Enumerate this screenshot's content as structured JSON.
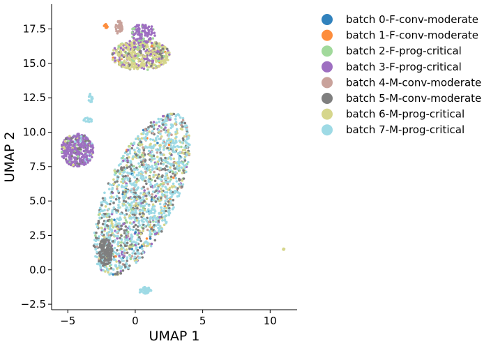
{
  "chart_data": {
    "type": "scatter",
    "title": "",
    "xlabel": "UMAP 1",
    "ylabel": "UMAP 2",
    "xlim": [
      -6.2,
      12.0
    ],
    "ylim": [
      -2.9,
      19.3
    ],
    "xticks": [
      -5,
      0,
      5,
      10
    ],
    "xtick_labels": [
      "−5",
      "0",
      "5",
      "10"
    ],
    "yticks": [
      -2.5,
      0.0,
      2.5,
      5.0,
      7.5,
      10.0,
      12.5,
      15.0,
      17.5
    ],
    "ytick_labels": [
      "−2.5",
      "0.0",
      "2.5",
      "5.0",
      "7.5",
      "10.0",
      "12.5",
      "15.0",
      "17.5"
    ],
    "grid": false,
    "legend_position": "outside-right-top",
    "series": [
      {
        "name": "batch 0-F-conv-moderate",
        "color": "#3182bd"
      },
      {
        "name": "batch 1-F-conv-moderate",
        "color": "#fd8d3c"
      },
      {
        "name": "batch 2-F-prog-critical",
        "color": "#a1d99b"
      },
      {
        "name": "batch 3-F-prog-critical",
        "color": "#9e6fc1"
      },
      {
        "name": "batch 4-M-conv-moderate",
        "color": "#c9a29b"
      },
      {
        "name": "batch 5-M-conv-moderate",
        "color": "#7f7f7f"
      },
      {
        "name": "batch 6-M-prog-critical",
        "color": "#d6d68c"
      },
      {
        "name": "batch 7-M-prog-critical",
        "color": "#9edae5"
      }
    ],
    "clusters": [
      {
        "cx": 0.5,
        "cy": 5.5,
        "rx": 2.6,
        "ry": 6.4,
        "rot": -25,
        "n": 1700,
        "mix": [
          0.01,
          0.01,
          0.04,
          0.04,
          0.04,
          0.2,
          0.16,
          0.5
        ]
      },
      {
        "cx": 0.4,
        "cy": 15.6,
        "rx": 2.2,
        "ry": 1.1,
        "rot": 0,
        "n": 520,
        "mix": [
          0.0,
          0.01,
          0.07,
          0.18,
          0.01,
          0.08,
          0.65,
          0.0
        ]
      },
      {
        "cx": 0.6,
        "cy": 17.2,
        "rx": 0.9,
        "ry": 0.7,
        "rot": 0,
        "n": 110,
        "mix": [
          0.0,
          0.0,
          0.2,
          0.8,
          0.0,
          0.0,
          0.0,
          0.0
        ]
      },
      {
        "cx": -1.2,
        "cy": 17.6,
        "rx": 0.25,
        "ry": 0.5,
        "rot": 0,
        "n": 40,
        "mix": [
          0.0,
          0.0,
          0.0,
          0.0,
          1.0,
          0.0,
          0.0,
          0.0
        ]
      },
      {
        "cx": -2.2,
        "cy": 17.7,
        "rx": 0.15,
        "ry": 0.15,
        "rot": 0,
        "n": 10,
        "mix": [
          0.0,
          1.0,
          0.0,
          0.0,
          0.0,
          0.0,
          0.0,
          0.0
        ]
      },
      {
        "cx": -4.3,
        "cy": 8.7,
        "rx": 1.2,
        "ry": 1.2,
        "rot": 0,
        "n": 380,
        "mix": [
          0.01,
          0.0,
          0.05,
          0.72,
          0.0,
          0.12,
          0.06,
          0.04
        ]
      },
      {
        "cx": -2.2,
        "cy": 1.3,
        "rx": 0.5,
        "ry": 1.0,
        "rot": 0,
        "n": 140,
        "mix": [
          0.0,
          0.0,
          0.0,
          0.0,
          0.0,
          1.0,
          0.0,
          0.0
        ]
      },
      {
        "cx": 0.7,
        "cy": -1.5,
        "rx": 0.5,
        "ry": 0.25,
        "rot": 0,
        "n": 40,
        "mix": [
          0.0,
          0.0,
          0.0,
          0.0,
          0.0,
          0.0,
          0.0,
          1.0
        ]
      },
      {
        "cx": -3.3,
        "cy": 12.4,
        "rx": 0.15,
        "ry": 0.4,
        "rot": 0,
        "n": 14,
        "mix": [
          0.0,
          0.0,
          0.0,
          0.0,
          0.0,
          0.0,
          0.0,
          1.0
        ]
      },
      {
        "cx": -3.5,
        "cy": 10.9,
        "rx": 0.5,
        "ry": 0.15,
        "rot": 0,
        "n": 14,
        "mix": [
          0.0,
          0.0,
          0.0,
          0.0,
          0.0,
          0.0,
          0.0,
          1.0
        ]
      },
      {
        "cx": 11.0,
        "cy": 1.5,
        "rx": 0.05,
        "ry": 0.05,
        "rot": 0,
        "n": 4,
        "mix": [
          0.0,
          0.0,
          0.0,
          0.0,
          0.0,
          0.0,
          1.0,
          0.0
        ]
      }
    ]
  }
}
